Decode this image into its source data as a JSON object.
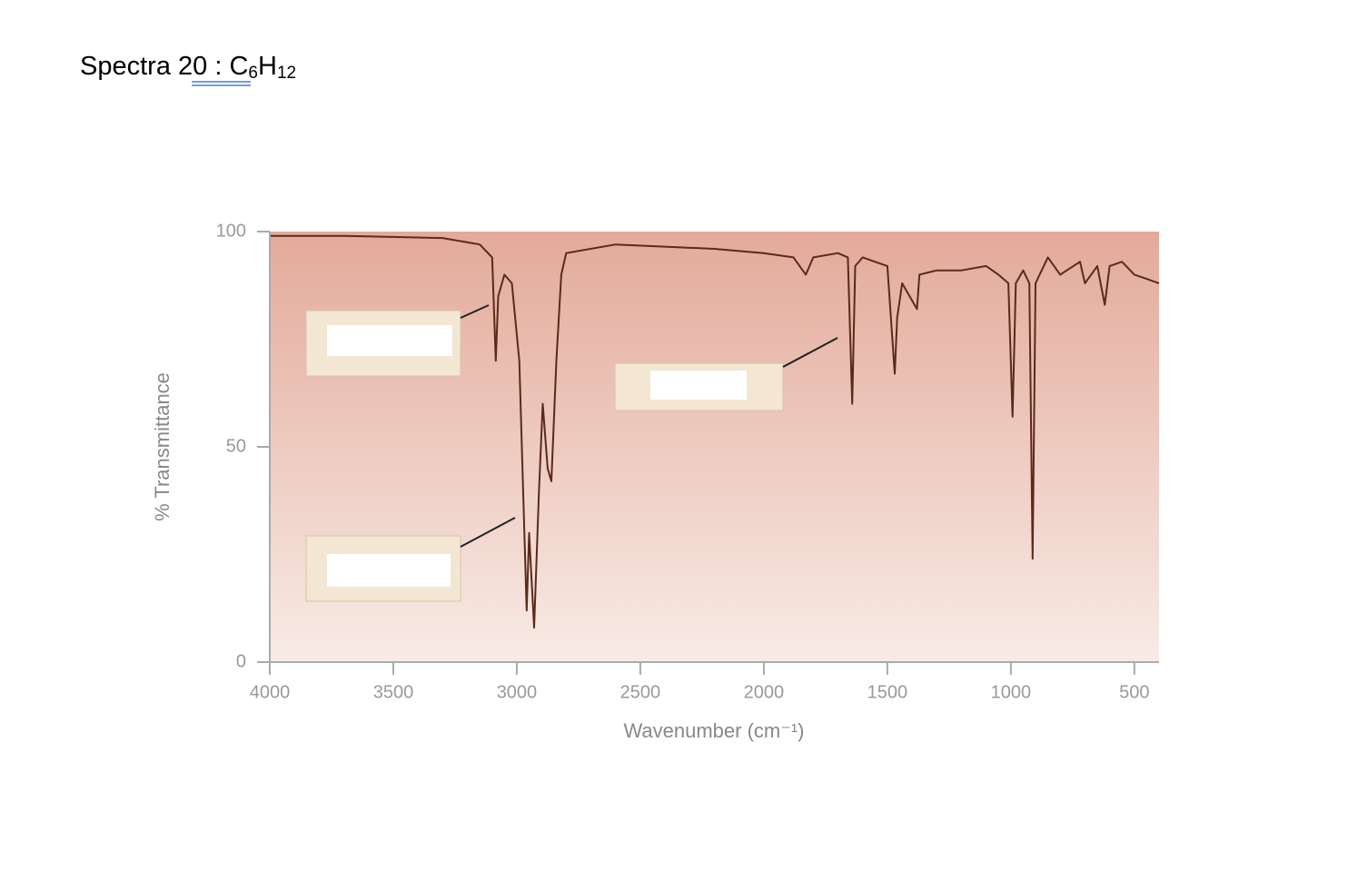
{
  "heading": {
    "word": "Spectra",
    "number": "20",
    "separator": ":",
    "formula": [
      "C",
      "6",
      "H",
      "12"
    ]
  },
  "chart_data": {
    "type": "line",
    "xlabel": "Wavenumber (cm⁻¹)",
    "ylabel": "% Transmittance",
    "color": "#5a2a1a",
    "x": [
      4000,
      3700,
      3300,
      3150,
      3100,
      3085,
      3075,
      3050,
      3020,
      2990,
      2960,
      2950,
      2930,
      2910,
      2895,
      2875,
      2860,
      2840,
      2820,
      2800,
      2600,
      2400,
      2200,
      2000,
      1880,
      1830,
      1800,
      1700,
      1660,
      1642,
      1630,
      1600,
      1550,
      1500,
      1470,
      1460,
      1440,
      1420,
      1380,
      1370,
      1300,
      1200,
      1100,
      1050,
      1010,
      993,
      980,
      950,
      925,
      912,
      900,
      850,
      800,
      720,
      700,
      650,
      620,
      600,
      550,
      500,
      450,
      400
    ],
    "values": [
      99,
      99,
      98.5,
      97,
      94,
      70,
      85,
      90,
      88,
      70,
      12,
      30,
      8,
      40,
      60,
      45,
      42,
      70,
      90,
      95,
      97,
      96.5,
      96,
      95,
      94,
      90,
      94,
      95,
      94,
      60,
      92,
      94,
      93,
      92,
      67,
      80,
      88,
      86,
      82,
      90,
      91,
      91,
      92,
      90,
      88,
      57,
      88,
      91,
      88,
      24,
      88,
      94,
      90,
      93,
      88,
      92,
      83,
      92,
      93,
      90,
      89,
      88
    ],
    "xlim": [
      4000,
      400
    ],
    "ylim": [
      0,
      100
    ],
    "xticks": [
      4000,
      3500,
      3000,
      2500,
      2000,
      1500,
      1000,
      500
    ],
    "yticks": [
      0,
      50,
      100
    ]
  }
}
